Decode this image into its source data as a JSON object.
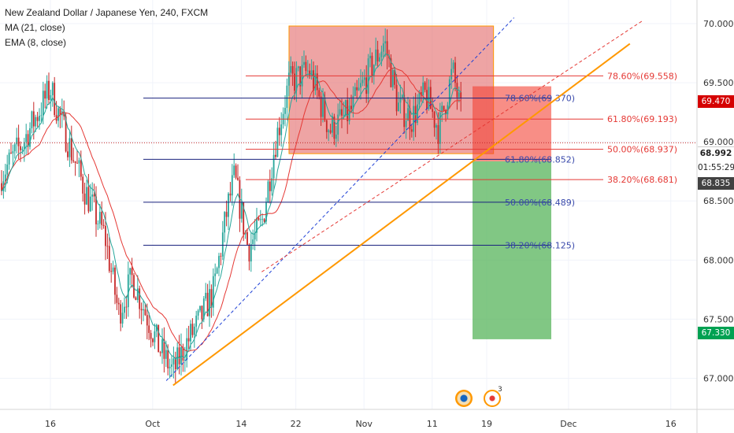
{
  "header": {
    "title": "New Zealand Dollar / Japanese Yen, 240, FXCM",
    "ma_label": "MA (21, close)",
    "ema_label": "EMA (8, close)"
  },
  "badges": {
    "price_69470": "69.470",
    "current_price": "68.992",
    "countdown": "01:55:29",
    "price_68835": "68.835",
    "target": "67.330"
  },
  "colors": {
    "up": "#26a69a",
    "down": "#c62828",
    "ma": "#e53935",
    "ema": "#26a69a",
    "fib_blue": "#1a237e",
    "fib_red": "#e53935",
    "trend": "#ff9800",
    "rect_fill": "#e57373",
    "stop_zone": "#f44336",
    "target_zone": "#4caf50"
  },
  "icons": [
    "bell-clock-icon",
    "notification-icon"
  ],
  "notification_count": "3",
  "chart_data": {
    "type": "candlestick",
    "title": "New Zealand Dollar / Japanese Yen, 240, FXCM",
    "indicators": [
      "MA (21, close)",
      "EMA (8, close)"
    ],
    "ylim": [
      66.75,
      70.2
    ],
    "y_ticks": [
      "70.000",
      "69.500",
      "69.000",
      "68.500",
      "68.000",
      "67.500",
      "67.000"
    ],
    "x_ticks": [
      "16",
      "Oct",
      "14",
      "22",
      "Nov",
      "11",
      "19",
      "Dec",
      "16"
    ],
    "close_path": [
      {
        "x": "Sep 8",
        "y": 68.65
      },
      {
        "x": "Sep 12",
        "y": 69.0
      },
      {
        "x": "Sep 16",
        "y": 69.45
      },
      {
        "x": "Sep 18",
        "y": 69.1
      },
      {
        "x": "Sep 21",
        "y": 68.6
      },
      {
        "x": "Sep 24",
        "y": 68.2
      },
      {
        "x": "Sep 26",
        "y": 67.55
      },
      {
        "x": "Sep 28",
        "y": 67.85
      },
      {
        "x": "Sep 30",
        "y": 67.55
      },
      {
        "x": "Oct 2",
        "y": 67.25
      },
      {
        "x": "Oct 4",
        "y": 67.05
      },
      {
        "x": "Oct 6",
        "y": 67.3
      },
      {
        "x": "Oct 8",
        "y": 67.5
      },
      {
        "x": "Oct 10",
        "y": 67.75
      },
      {
        "x": "Oct 12",
        "y": 68.45
      },
      {
        "x": "Oct 13",
        "y": 68.7
      },
      {
        "x": "Oct 15",
        "y": 68.1
      },
      {
        "x": "Oct 17",
        "y": 68.3
      },
      {
        "x": "Oct 19",
        "y": 69.0
      },
      {
        "x": "Oct 21",
        "y": 69.5
      },
      {
        "x": "Oct 24",
        "y": 69.6
      },
      {
        "x": "Oct 27",
        "y": 69.1
      },
      {
        "x": "Oct 30",
        "y": 69.25
      },
      {
        "x": "Nov 1",
        "y": 69.5
      },
      {
        "x": "Nov 4",
        "y": 69.85
      },
      {
        "x": "Nov 6",
        "y": 69.3
      },
      {
        "x": "Nov 8",
        "y": 69.2
      },
      {
        "x": "Nov 10",
        "y": 69.4
      },
      {
        "x": "Nov 12",
        "y": 69.1
      },
      {
        "x": "Nov 14",
        "y": 69.6
      },
      {
        "x": "Nov 16",
        "y": 69.0
      },
      {
        "x": "Nov 17",
        "y": 68.99
      }
    ],
    "fib_blue": [
      {
        "label": "78.60%(69.370)",
        "value": 69.37
      },
      {
        "label": "61.80%(68.852)",
        "value": 68.852
      },
      {
        "label": "50.00%(68.489)",
        "value": 68.489
      },
      {
        "label": "38.20%(68.125)",
        "value": 68.125
      }
    ],
    "fib_red": [
      {
        "label": "78.60%(69.558)",
        "value": 69.558
      },
      {
        "label": "61.80%(69.193)",
        "value": 69.193
      },
      {
        "label": "50.00%(68.937)",
        "value": 68.937
      },
      {
        "label": "38.20%(68.681)",
        "value": 68.681
      }
    ],
    "range_box": {
      "from": "Oct 21",
      "to": "Nov 20",
      "high": 69.98,
      "low": 68.9
    },
    "position": {
      "entry": 68.835,
      "stop": 69.47,
      "target": 67.33
    },
    "trendlines": [
      {
        "name": "orange-support",
        "from": {
          "x": "Oct 4",
          "y": 66.94
        },
        "to": {
          "x": "Dec 10",
          "y": 69.83
        }
      },
      {
        "name": "blue-dashed",
        "from": {
          "x": "Oct 3",
          "y": 66.98
        },
        "to": {
          "x": "Nov 23",
          "y": 70.05
        }
      },
      {
        "name": "red-dashed",
        "from": {
          "x": "Oct 17",
          "y": 67.9
        },
        "to": {
          "x": "Dec 12",
          "y": 70.03
        }
      }
    ]
  }
}
